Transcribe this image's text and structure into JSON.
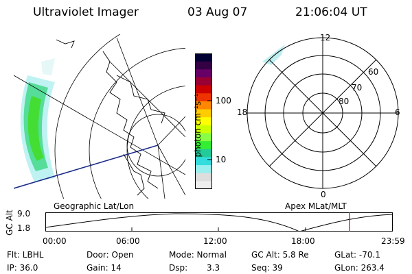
{
  "header": {
    "title": "Ultraviolet Imager",
    "date": "03 Aug 07",
    "time": "21:06:04 UT"
  },
  "colorbar": {
    "unit_label": "photon cm⁻²s⁻¹",
    "ticks": [
      "100",
      "10"
    ],
    "colors": [
      "#000033",
      "#330044",
      "#660066",
      "#990033",
      "#cc0000",
      "#ee3300",
      "#ff8800",
      "#ffcc00",
      "#ffff00",
      "#ccff00",
      "#88ff44",
      "#33ee33",
      "#22cc99",
      "#33dddd",
      "#99eeee",
      "#dddddd",
      "#eeeeee"
    ]
  },
  "left_map": {
    "label": "Geographic Lat/Lon"
  },
  "right_polar": {
    "label": "Apex MLat/MLT",
    "mlt_labels": {
      "top": "12",
      "left": "18",
      "right": "6",
      "bottom": "0"
    },
    "lat_labels": [
      "60",
      "70",
      "80"
    ]
  },
  "altitude_plot": {
    "ylabel": "GC Alt",
    "ymax": "9.0",
    "ymin": "1.8",
    "x_ticks": [
      "00:00",
      "06:00",
      "12:00",
      "18:00",
      "23:59"
    ],
    "marker_color": "#cc0000"
  },
  "info": {
    "flt": "Flt: LBHL",
    "ip": "IP: 36.0",
    "door": "Door: Open",
    "gain": "Gain: 14",
    "mode": "Mode: Normal",
    "dsp_label": "Dsp:",
    "dsp_value": "3.3",
    "gc_alt": "GC Alt: 5.8 Re",
    "seq": "Seq: 39",
    "glat": "GLat: -70.1",
    "glon": "GLon: 263.4"
  }
}
